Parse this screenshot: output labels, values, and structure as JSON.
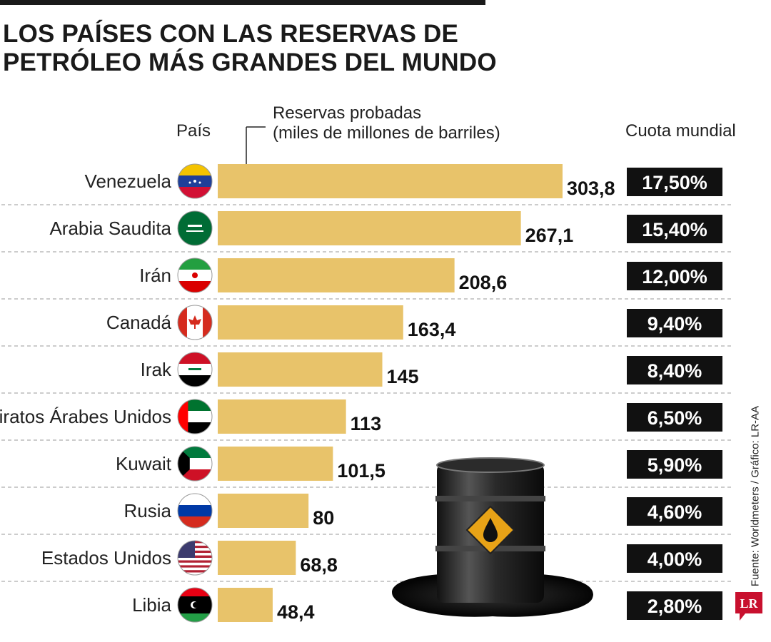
{
  "title_line1": "LOS PAÍSES CON LAS RESERVAS DE",
  "title_line2": "PETRÓLEO MÁS GRANDES DEL MUNDO",
  "headers": {
    "country": "País",
    "reserves_line1": "Reservas probadas",
    "reserves_line2": "(miles de millones de barriles)",
    "share": "Cuota mundial"
  },
  "source": "Fuente: Worldmeters / Gráfico: LR-AA",
  "logo_text": "LR",
  "colors": {
    "bar": "#e8c36a",
    "share_bg": "#111111",
    "share_text": "#ffffff",
    "logo": "#c8102e"
  },
  "chart_data": {
    "type": "bar",
    "orientation": "horizontal",
    "title": "LOS PAÍSES CON LAS RESERVAS DE PETRÓLEO MÁS GRANDES DEL MUNDO",
    "xlabel": "Reservas probadas (miles de millones de barriles)",
    "categories": [
      "Venezuela",
      "Arabia Saudita",
      "Irán",
      "Canadá",
      "Irak",
      "Emiratos Árabes Unidos",
      "Kuwait",
      "Rusia",
      "Estados Unidos",
      "Libia"
    ],
    "values": [
      303.8,
      267.1,
      208.6,
      163.4,
      145,
      113,
      101.5,
      80,
      68.8,
      48.4
    ],
    "value_labels": [
      "303,8",
      "267,1",
      "208,6",
      "163,4",
      "145",
      "113",
      "101,5",
      "80",
      "68,8",
      "48,4"
    ],
    "share_labels": [
      "17,50%",
      "15,40%",
      "12,00%",
      "9,40%",
      "8,40%",
      "6,50%",
      "5,90%",
      "4,60%",
      "4,00%",
      "2,80%"
    ],
    "flags": [
      "venezuela-flag",
      "saudi-arabia-flag",
      "iran-flag",
      "canada-flag",
      "iraq-flag",
      "uae-flag",
      "kuwait-flag",
      "russia-flag",
      "usa-flag",
      "libya-flag"
    ],
    "xlim": [
      0,
      303.8
    ]
  }
}
